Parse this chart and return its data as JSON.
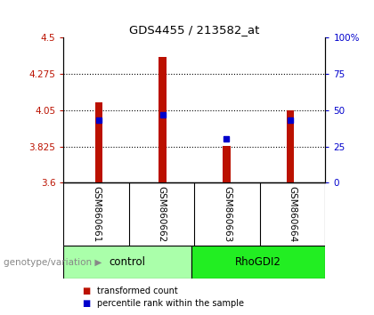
{
  "title": "GDS4455 / 213582_at",
  "samples": [
    "GSM860661",
    "GSM860662",
    "GSM860663",
    "GSM860664"
  ],
  "bar_values": [
    4.1,
    4.38,
    3.83,
    4.05
  ],
  "bar_bottom": 3.6,
  "percentile_pct": [
    43,
    47,
    30,
    43
  ],
  "ylim_left": [
    3.6,
    4.5
  ],
  "ylim_right": [
    0,
    100
  ],
  "yticks_left": [
    3.6,
    3.825,
    4.05,
    4.275,
    4.5
  ],
  "ytick_labels_left": [
    "3.6",
    "3.825",
    "4.05",
    "4.275",
    "4.5"
  ],
  "yticks_right": [
    0,
    25,
    50,
    75,
    100
  ],
  "ytick_labels_right": [
    "0",
    "25",
    "50",
    "75",
    "100%"
  ],
  "bar_color": "#bb1100",
  "dot_color": "#0000cc",
  "group_colors_control": "#aaffaa",
  "group_colors_RhoGDI2": "#22ee22",
  "group_label": "genotype/variation",
  "legend_bar_label": "transformed count",
  "legend_dot_label": "percentile rank within the sample",
  "bar_width": 0.12,
  "sample_area_color": "#cccccc",
  "plot_bg_color": "#ffffff"
}
